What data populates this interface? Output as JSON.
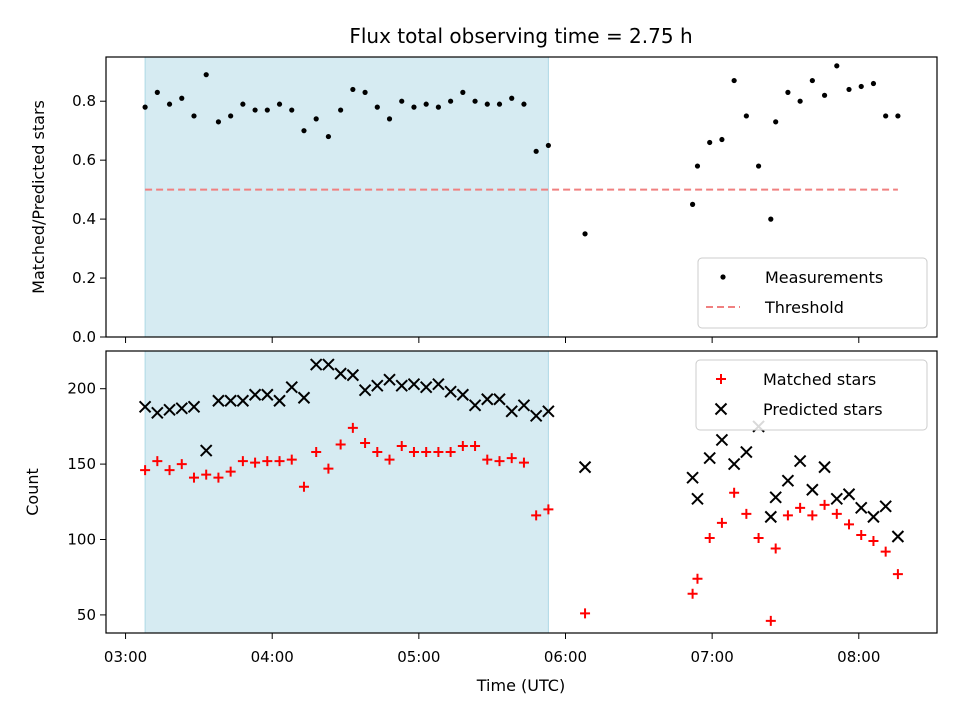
{
  "chart_data": {
    "type": "scatter",
    "title": "Flux total observing time = 2.75 h",
    "xlabel": "Time (UTC)",
    "x_ticks": [
      "03:00",
      "04:00",
      "05:00",
      "06:00",
      "07:00",
      "08:00"
    ],
    "xlim": [
      "02:52",
      "08:32"
    ],
    "shaded_interval": [
      "03:08",
      "05:53"
    ],
    "shade_color": "#add8e6",
    "subplots": [
      {
        "ylabel": "Matched/Predicted stars",
        "ylim": [
          0,
          0.95
        ],
        "y_ticks": [
          "0.0",
          "0.2",
          "0.4",
          "0.6",
          "0.8"
        ],
        "legend": {
          "location": "lower right",
          "entries": [
            "Measurements",
            "Threshold"
          ]
        },
        "series": [
          {
            "name": "Measurements",
            "marker": "dot",
            "color": "#000000",
            "points": [
              [
                "03:08",
                0.78
              ],
              [
                "03:13",
                0.83
              ],
              [
                "03:18",
                0.79
              ],
              [
                "03:23",
                0.81
              ],
              [
                "03:28",
                0.75
              ],
              [
                "03:33",
                0.89
              ],
              [
                "03:38",
                0.73
              ],
              [
                "03:43",
                0.75
              ],
              [
                "03:48",
                0.79
              ],
              [
                "03:53",
                0.77
              ],
              [
                "03:58",
                0.77
              ],
              [
                "04:03",
                0.79
              ],
              [
                "04:08",
                0.77
              ],
              [
                "04:13",
                0.7
              ],
              [
                "04:18",
                0.74
              ],
              [
                "04:23",
                0.68
              ],
              [
                "04:28",
                0.77
              ],
              [
                "04:33",
                0.84
              ],
              [
                "04:38",
                0.83
              ],
              [
                "04:43",
                0.78
              ],
              [
                "04:48",
                0.74
              ],
              [
                "04:53",
                0.8
              ],
              [
                "04:58",
                0.78
              ],
              [
                "05:03",
                0.79
              ],
              [
                "05:08",
                0.78
              ],
              [
                "05:13",
                0.8
              ],
              [
                "05:18",
                0.83
              ],
              [
                "05:23",
                0.8
              ],
              [
                "05:28",
                0.79
              ],
              [
                "05:33",
                0.79
              ],
              [
                "05:38",
                0.81
              ],
              [
                "05:43",
                0.79
              ],
              [
                "05:48",
                0.63
              ],
              [
                "05:53",
                0.65
              ],
              [
                "06:08",
                0.35
              ],
              [
                "06:52",
                0.45
              ],
              [
                "06:54",
                0.58
              ],
              [
                "06:59",
                0.66
              ],
              [
                "07:04",
                0.67
              ],
              [
                "07:09",
                0.87
              ],
              [
                "07:14",
                0.75
              ],
              [
                "07:19",
                0.58
              ],
              [
                "07:24",
                0.4
              ],
              [
                "07:26",
                0.73
              ],
              [
                "07:31",
                0.83
              ],
              [
                "07:36",
                0.8
              ],
              [
                "07:41",
                0.87
              ],
              [
                "07:46",
                0.82
              ],
              [
                "07:51",
                0.92
              ],
              [
                "07:56",
                0.84
              ],
              [
                "08:01",
                0.85
              ],
              [
                "08:06",
                0.86
              ],
              [
                "08:11",
                0.75
              ],
              [
                "08:16",
                0.75
              ]
            ]
          },
          {
            "name": "Threshold",
            "style": "dashed-line",
            "color": "#f08080",
            "points": [
              [
                "03:08",
                0.5
              ],
              [
                "08:16",
                0.5
              ]
            ]
          }
        ]
      },
      {
        "ylabel": "Count",
        "ylim": [
          38,
          225
        ],
        "y_ticks": [
          "50",
          "100",
          "150",
          "200"
        ],
        "legend": {
          "location": "upper right",
          "entries": [
            "Matched stars",
            "Predicted stars"
          ]
        },
        "series": [
          {
            "name": "Matched stars",
            "marker": "plus",
            "color": "#ff0000",
            "points": [
              [
                "03:08",
                146
              ],
              [
                "03:13",
                152
              ],
              [
                "03:18",
                146
              ],
              [
                "03:23",
                150
              ],
              [
                "03:28",
                141
              ],
              [
                "03:33",
                143
              ],
              [
                "03:38",
                141
              ],
              [
                "03:43",
                145
              ],
              [
                "03:48",
                152
              ],
              [
                "03:53",
                151
              ],
              [
                "03:58",
                152
              ],
              [
                "04:03",
                152
              ],
              [
                "04:08",
                153
              ],
              [
                "04:13",
                135
              ],
              [
                "04:18",
                158
              ],
              [
                "04:23",
                147
              ],
              [
                "04:28",
                163
              ],
              [
                "04:33",
                174
              ],
              [
                "04:38",
                164
              ],
              [
                "04:43",
                158
              ],
              [
                "04:48",
                153
              ],
              [
                "04:53",
                162
              ],
              [
                "04:58",
                158
              ],
              [
                "05:03",
                158
              ],
              [
                "05:08",
                158
              ],
              [
                "05:13",
                158
              ],
              [
                "05:18",
                162
              ],
              [
                "05:23",
                162
              ],
              [
                "05:28",
                153
              ],
              [
                "05:33",
                152
              ],
              [
                "05:38",
                154
              ],
              [
                "05:43",
                151
              ],
              [
                "05:48",
                116
              ],
              [
                "05:53",
                120
              ],
              [
                "06:08",
                51
              ],
              [
                "06:52",
                64
              ],
              [
                "06:54",
                74
              ],
              [
                "06:59",
                101
              ],
              [
                "07:04",
                111
              ],
              [
                "07:09",
                131
              ],
              [
                "07:14",
                117
              ],
              [
                "07:19",
                101
              ],
              [
                "07:24",
                46
              ],
              [
                "07:26",
                94
              ],
              [
                "07:31",
                116
              ],
              [
                "07:36",
                121
              ],
              [
                "07:41",
                116
              ],
              [
                "07:46",
                123
              ],
              [
                "07:51",
                117
              ],
              [
                "07:56",
                110
              ],
              [
                "08:01",
                103
              ],
              [
                "08:06",
                99
              ],
              [
                "08:11",
                92
              ],
              [
                "08:16",
                77
              ]
            ]
          },
          {
            "name": "Predicted stars",
            "marker": "x",
            "color": "#000000",
            "points": [
              [
                "03:08",
                188
              ],
              [
                "03:13",
                184
              ],
              [
                "03:18",
                186
              ],
              [
                "03:23",
                187
              ],
              [
                "03:28",
                188
              ],
              [
                "03:33",
                159
              ],
              [
                "03:38",
                192
              ],
              [
                "03:43",
                192
              ],
              [
                "03:48",
                192
              ],
              [
                "03:53",
                196
              ],
              [
                "03:58",
                196
              ],
              [
                "04:03",
                192
              ],
              [
                "04:08",
                201
              ],
              [
                "04:13",
                194
              ],
              [
                "04:18",
                216
              ],
              [
                "04:23",
                216
              ],
              [
                "04:28",
                210
              ],
              [
                "04:33",
                209
              ],
              [
                "04:38",
                199
              ],
              [
                "04:43",
                202
              ],
              [
                "04:48",
                206
              ],
              [
                "04:53",
                202
              ],
              [
                "04:58",
                203
              ],
              [
                "05:03",
                201
              ],
              [
                "05:08",
                203
              ],
              [
                "05:13",
                198
              ],
              [
                "05:18",
                196
              ],
              [
                "05:23",
                189
              ],
              [
                "05:28",
                193
              ],
              [
                "05:33",
                193
              ],
              [
                "05:38",
                185
              ],
              [
                "05:43",
                189
              ],
              [
                "05:48",
                182
              ],
              [
                "05:53",
                185
              ],
              [
                "06:08",
                148
              ],
              [
                "06:52",
                141
              ],
              [
                "06:54",
                127
              ],
              [
                "06:59",
                154
              ],
              [
                "07:04",
                166
              ],
              [
                "07:09",
                150
              ],
              [
                "07:14",
                158
              ],
              [
                "07:19",
                175
              ],
              [
                "07:24",
                115
              ],
              [
                "07:26",
                128
              ],
              [
                "07:31",
                139
              ],
              [
                "07:36",
                152
              ],
              [
                "07:41",
                133
              ],
              [
                "07:46",
                148
              ],
              [
                "07:51",
                127
              ],
              [
                "07:56",
                130
              ],
              [
                "08:01",
                121
              ],
              [
                "08:06",
                115
              ],
              [
                "08:11",
                122
              ],
              [
                "08:16",
                102
              ]
            ]
          }
        ]
      }
    ]
  }
}
